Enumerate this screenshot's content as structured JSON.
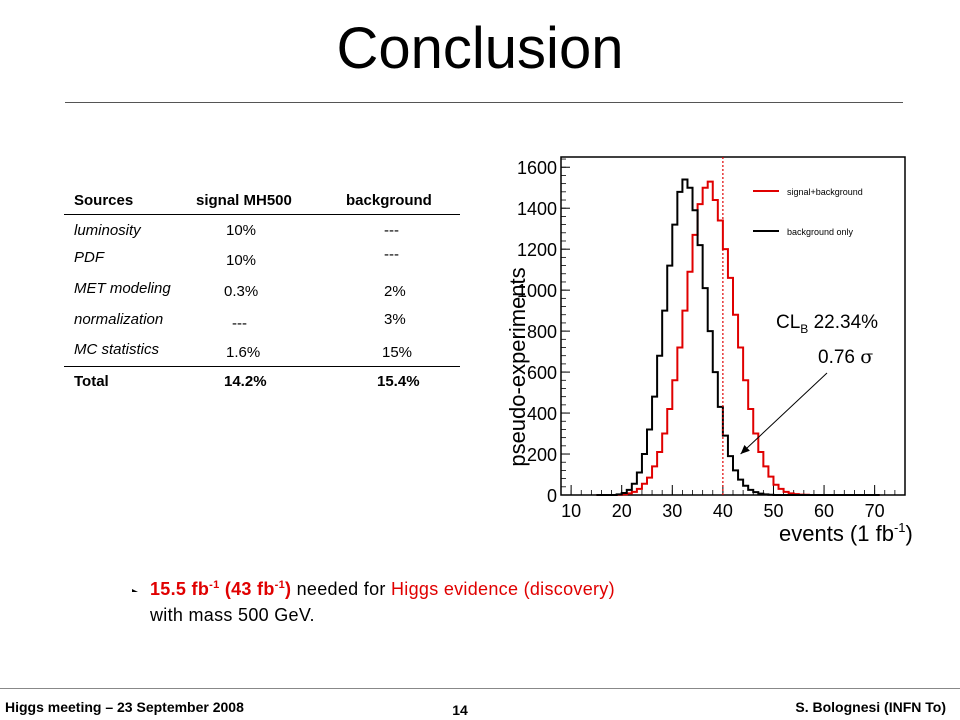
{
  "slide": {
    "title": "Conclusion"
  },
  "table": {
    "headers": [
      "Sources",
      "signal MH500",
      "background"
    ],
    "rows": [
      {
        "source": "luminosity",
        "signal": "10%",
        "background": "---"
      },
      {
        "source": "PDF",
        "signal": "10%",
        "background": "---"
      },
      {
        "source": "MET modeling",
        "signal": "0.3%",
        "background": "2%"
      },
      {
        "source": "normalization",
        "signal": "---",
        "background": "3%"
      },
      {
        "source": "MC statistics",
        "signal": "1.6%",
        "background": "15%"
      }
    ],
    "total": {
      "source": "Total",
      "signal": "14.2%",
      "background": "15.4%"
    }
  },
  "chart_data": {
    "type": "line",
    "xlabel": "events (1 fb",
    "xlabel_sup": "-1",
    "xlabel_close": ")",
    "ylabel": "pseudo-experiments",
    "xlim": [
      8,
      76
    ],
    "ylim": [
      0,
      1650
    ],
    "x_ticks": [
      10,
      20,
      30,
      40,
      50,
      60,
      70
    ],
    "y_ticks": [
      0,
      200,
      400,
      600,
      800,
      1000,
      1200,
      1400,
      1600
    ],
    "bin_width": 1,
    "series": [
      {
        "name": "signal+background",
        "color": "#e00000",
        "x_start": 15,
        "values": [
          0,
          0,
          0,
          0,
          1,
          3,
          8,
          15,
          30,
          55,
          85,
          140,
          210,
          300,
          420,
          560,
          720,
          900,
          1090,
          1270,
          1420,
          1500,
          1530,
          1440,
          1340,
          1200,
          1060,
          880,
          720,
          560,
          420,
          300,
          210,
          140,
          90,
          50,
          30,
          15,
          8,
          4,
          2,
          1,
          0,
          0,
          0,
          0,
          0,
          0,
          0,
          0,
          0,
          0,
          0,
          0,
          0,
          0
        ]
      },
      {
        "name": "background only",
        "color": "#000000",
        "x_start": 15,
        "values": [
          0,
          0,
          0,
          0,
          3,
          10,
          25,
          55,
          110,
          200,
          320,
          480,
          680,
          900,
          1120,
          1320,
          1480,
          1540,
          1500,
          1390,
          1220,
          1010,
          800,
          600,
          430,
          290,
          190,
          120,
          75,
          45,
          25,
          14,
          7,
          3,
          1,
          0,
          0,
          0,
          0,
          0,
          0,
          0,
          0,
          0,
          0,
          0,
          0,
          0,
          0,
          0,
          0,
          0,
          0,
          0,
          0,
          0
        ]
      }
    ],
    "vline_x": 40,
    "vline_color": "#e00000",
    "annotations": {
      "clb_label": "CL",
      "clb_sub": "B",
      "clb_value": " 22.34%",
      "sigma_value": "0.76 ",
      "sigma_symbol": "σ",
      "arrow_target_x": 43.5,
      "arrow_target_y": 200
    }
  },
  "note": {
    "lumi_evidence": "15.5 fb",
    "lumi_discovery_open": " (43 fb",
    "lumi_discovery_close": ")",
    "lumi_sup": "-1",
    "needed_for": " needed for ",
    "red_phrase": "Higgs evidence (discovery)",
    "line2": "with mass 500 GeV."
  },
  "footer": {
    "left": "Higgs meeting – 23 September 2008",
    "page": "14",
    "right": "S. Bolognesi (INFN To)"
  }
}
